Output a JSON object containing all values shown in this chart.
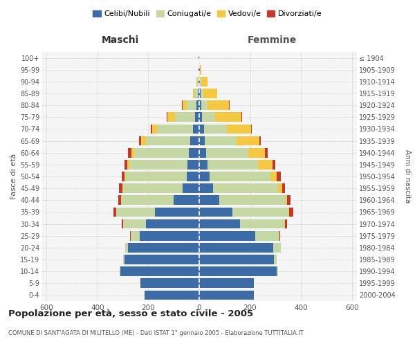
{
  "age_groups": [
    "0-4",
    "5-9",
    "10-14",
    "15-19",
    "20-24",
    "25-29",
    "30-34",
    "35-39",
    "40-44",
    "45-49",
    "50-54",
    "55-59",
    "60-64",
    "65-69",
    "70-74",
    "75-79",
    "80-84",
    "85-89",
    "90-94",
    "95-99",
    "100+"
  ],
  "birth_years": [
    "2000-2004",
    "1995-1999",
    "1990-1994",
    "1985-1989",
    "1980-1984",
    "1975-1979",
    "1970-1974",
    "1965-1969",
    "1960-1964",
    "1955-1959",
    "1950-1954",
    "1945-1949",
    "1940-1944",
    "1935-1939",
    "1930-1934",
    "1925-1929",
    "1920-1924",
    "1915-1919",
    "1910-1914",
    "1905-1909",
    "≤ 1904"
  ],
  "males": {
    "celibi": [
      215,
      230,
      310,
      295,
      280,
      235,
      210,
      175,
      100,
      65,
      50,
      45,
      40,
      35,
      25,
      15,
      10,
      5,
      3,
      2,
      2
    ],
    "coniugati": [
      0,
      0,
      2,
      5,
      10,
      35,
      90,
      150,
      205,
      235,
      240,
      230,
      215,
      175,
      140,
      80,
      40,
      15,
      5,
      2,
      1
    ],
    "vedovi": [
      0,
      0,
      0,
      0,
      0,
      0,
      0,
      0,
      2,
      3,
      5,
      8,
      12,
      18,
      20,
      30,
      15,
      5,
      2,
      0,
      0
    ],
    "divorziati": [
      0,
      0,
      0,
      0,
      0,
      2,
      5,
      12,
      12,
      12,
      10,
      12,
      12,
      8,
      5,
      2,
      2,
      0,
      0,
      0,
      0
    ]
  },
  "females": {
    "nubili": [
      215,
      215,
      305,
      295,
      290,
      220,
      160,
      130,
      80,
      55,
      40,
      32,
      28,
      22,
      18,
      12,
      8,
      5,
      3,
      2,
      1
    ],
    "coniugate": [
      0,
      0,
      5,
      10,
      30,
      95,
      175,
      220,
      260,
      255,
      240,
      200,
      165,
      125,
      90,
      50,
      25,
      10,
      5,
      2,
      0
    ],
    "vedove": [
      0,
      0,
      0,
      0,
      0,
      0,
      2,
      3,
      5,
      15,
      25,
      55,
      65,
      90,
      95,
      105,
      85,
      55,
      25,
      5,
      1
    ],
    "divorziate": [
      0,
      0,
      0,
      0,
      0,
      3,
      8,
      18,
      15,
      12,
      15,
      12,
      10,
      5,
      5,
      2,
      2,
      0,
      0,
      0,
      0
    ]
  },
  "colors": {
    "celibi": "#3c6ca8",
    "coniugati": "#c5d8a4",
    "vedovi": "#f5c842",
    "divorziati": "#c0392b"
  },
  "xlim": 620,
  "title": "Popolazione per età, sesso e stato civile - 2005",
  "subtitle": "COMUNE DI SANT'AGATA DI MILITELLO (ME) - Dati ISTAT 1° gennaio 2005 - Elaborazione TUTTITALIA.IT",
  "ylabel_left": "Fasce di età",
  "ylabel_right": "Anni di nascita",
  "xlabel_left": "Maschi",
  "xlabel_right": "Femmine",
  "legend_labels": [
    "Celibi/Nubili",
    "Coniugati/e",
    "Vedovi/e",
    "Divorziati/e"
  ],
  "bg_color": "#ffffff",
  "plot_bg_color": "#f5f5f5",
  "grid_color": "#cccccc"
}
